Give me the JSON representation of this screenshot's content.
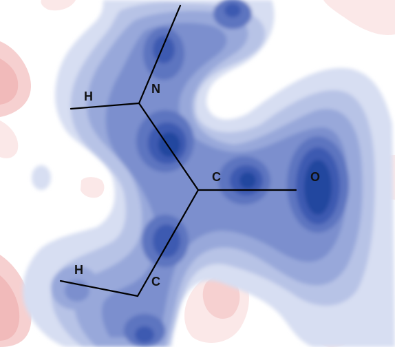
{
  "diagram": {
    "type": "electron-density-contour-map",
    "colors": {
      "background": "#ffffff",
      "blue_levels": [
        "#d7def2",
        "#b7c3e6",
        "#98a8da",
        "#7b8fce",
        "#5d75c0",
        "#3e5ab1",
        "#24479f"
      ],
      "red_levels": [
        "#fbe8e8",
        "#f6d0d0",
        "#f1baba"
      ],
      "bond": "#000000"
    },
    "atoms": [
      {
        "id": "N",
        "label": "N"
      },
      {
        "id": "H_upper",
        "label": "H"
      },
      {
        "id": "C_center",
        "label": "C"
      },
      {
        "id": "O",
        "label": "O"
      },
      {
        "id": "C_lower",
        "label": "C"
      },
      {
        "id": "H_lower",
        "label": "H"
      }
    ]
  }
}
